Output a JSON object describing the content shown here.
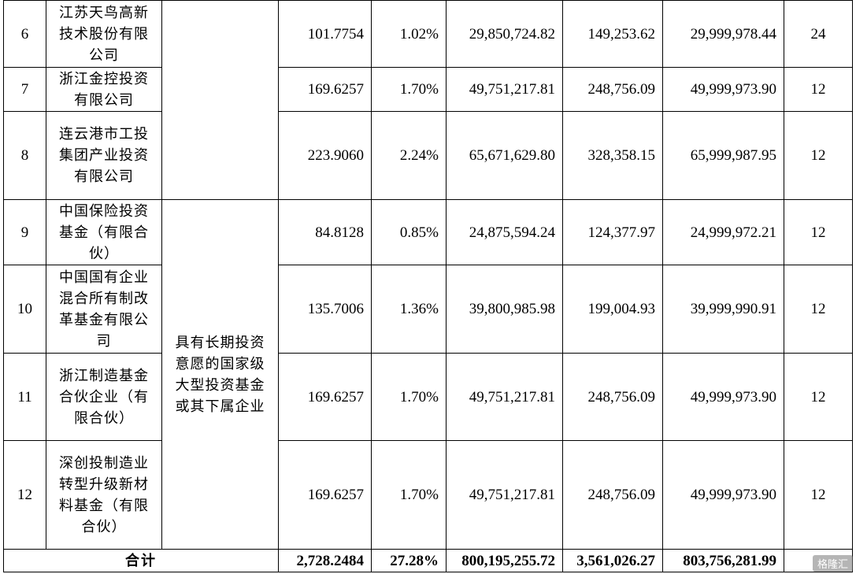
{
  "rows": [
    {
      "idx": "6",
      "name": "江苏天鸟高新技术股份有限公司",
      "shares": "101.7754",
      "ratio": "1.02%",
      "amount": "29,850,724.82",
      "interest": "149,253.62",
      "total": "29,999,978.44",
      "lock": "24"
    },
    {
      "idx": "7",
      "name": "浙江金控投资有限公司",
      "shares": "169.6257",
      "ratio": "1.70%",
      "amount": "49,751,217.81",
      "interest": "248,756.09",
      "total": "49,999,973.90",
      "lock": "12"
    },
    {
      "idx": "8",
      "name": "连云港市工投集团产业投资有限公司",
      "shares": "223.9060",
      "ratio": "2.24%",
      "amount": "65,671,629.80",
      "interest": "328,358.15",
      "total": "65,999,987.95",
      "lock": "12"
    },
    {
      "idx": "9",
      "name": "中国保险投资基金（有限合伙）",
      "shares": "84.8128",
      "ratio": "0.85%",
      "amount": "24,875,594.24",
      "interest": "124,377.97",
      "total": "24,999,972.21",
      "lock": "12"
    },
    {
      "idx": "10",
      "name": "中国国有企业混合所有制改革基金有限公司",
      "shares": "135.7006",
      "ratio": "1.36%",
      "amount": "39,800,985.98",
      "interest": "199,004.93",
      "total": "39,999,990.91",
      "lock": "12"
    },
    {
      "idx": "11",
      "name": "浙江制造基金合伙企业（有限合伙）",
      "shares": "169.6257",
      "ratio": "1.70%",
      "amount": "49,751,217.81",
      "interest": "248,756.09",
      "total": "49,999,973.90",
      "lock": "12"
    },
    {
      "idx": "12",
      "name": "深创投制造业转型升级新材料基金（有限合伙）",
      "shares": "169.6257",
      "ratio": "1.70%",
      "amount": "49,751,217.81",
      "interest": "248,756.09",
      "total": "49,999,973.90",
      "lock": "12"
    }
  ],
  "category_text": "具有长期投资意愿的国家级大型投资基金或其下属企业",
  "total_row": {
    "label": "合计",
    "shares": "2,728.2484",
    "ratio": "27.28%",
    "amount": "800,195,255.72",
    "interest": "3,561,026.27",
    "total": "803,756,281.99",
    "lock": ""
  },
  "watermark": "格隆汇"
}
